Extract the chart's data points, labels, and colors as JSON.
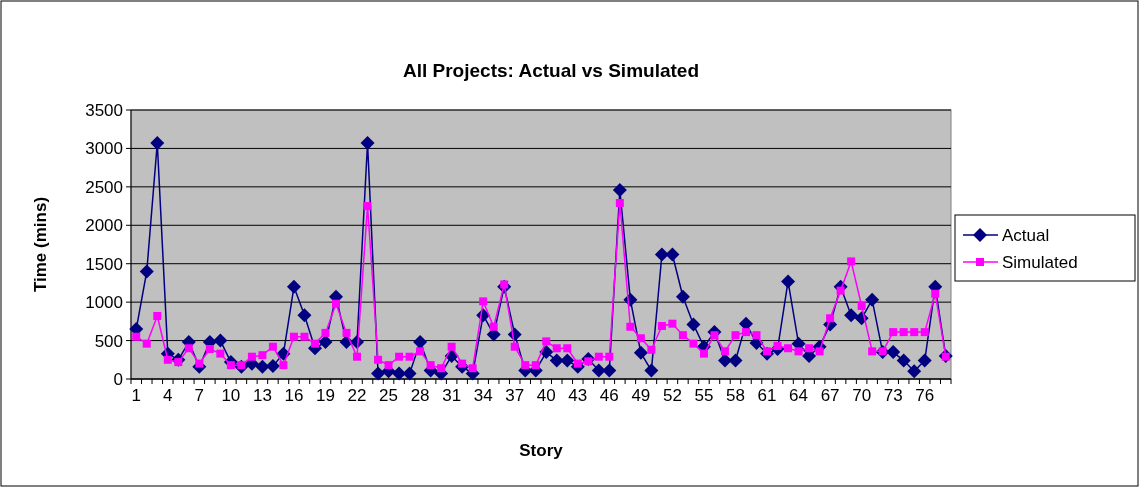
{
  "chart_data": {
    "type": "line",
    "title": "All Projects: Actual vs Simulated",
    "xlabel": "Story",
    "ylabel": "Time (mins)",
    "categories": [
      "1",
      null,
      null,
      "4",
      null,
      null,
      "7",
      null,
      null,
      "10",
      null,
      null,
      "13",
      null,
      null,
      "16",
      null,
      null,
      "19",
      null,
      null,
      "22",
      null,
      null,
      "25",
      null,
      null,
      "28",
      null,
      null,
      "31",
      null,
      null,
      "34",
      null,
      null,
      "37",
      null,
      null,
      "40",
      null,
      null,
      "43",
      null,
      null,
      "46",
      null,
      null,
      "49",
      null,
      null,
      "52",
      null,
      null,
      "55",
      null,
      null,
      "58",
      null,
      null,
      "61",
      null,
      null,
      "64",
      null,
      null,
      "67",
      null,
      null,
      "70",
      null,
      null,
      "73",
      null,
      null,
      "76",
      null,
      null
    ],
    "series": [
      {
        "name": "Actual",
        "color": "#000080",
        "marker": "diamond",
        "values": [
          650,
          1400,
          3070,
          330,
          250,
          480,
          160,
          480,
          500,
          220,
          160,
          200,
          160,
          170,
          330,
          1200,
          830,
          400,
          480,
          1070,
          480,
          480,
          3070,
          70,
          100,
          70,
          70,
          480,
          110,
          70,
          300,
          160,
          70,
          830,
          580,
          1200,
          580,
          110,
          110,
          350,
          240,
          240,
          160,
          260,
          110,
          110,
          2460,
          1030,
          340,
          110,
          1620,
          1620,
          1070,
          710,
          420,
          610,
          240,
          240,
          720,
          470,
          330,
          390,
          1270,
          460,
          300,
          420,
          710,
          1200,
          830,
          790,
          1030,
          350,
          350,
          240,
          100,
          240,
          1200,
          300
        ]
      },
      {
        "name": "Simulated",
        "color": "#ff00ff",
        "marker": "square",
        "values": [
          550,
          460,
          820,
          250,
          220,
          400,
          200,
          390,
          330,
          180,
          180,
          290,
          310,
          420,
          180,
          550,
          550,
          460,
          600,
          980,
          600,
          290,
          2250,
          250,
          180,
          290,
          290,
          360,
          180,
          140,
          420,
          200,
          140,
          1010,
          680,
          1230,
          420,
          180,
          180,
          490,
          400,
          400,
          200,
          230,
          290,
          290,
          2290,
          680,
          530,
          380,
          690,
          720,
          570,
          460,
          330,
          570,
          360,
          570,
          610,
          570,
          360,
          430,
          400,
          360,
          400,
          360,
          790,
          1150,
          1530,
          950,
          360,
          360,
          610,
          610,
          610,
          610,
          1110,
          290
        ]
      }
    ],
    "ylim": [
      0,
      3500
    ],
    "yticks": [
      0,
      500,
      1000,
      1500,
      2000,
      2500,
      3000,
      3500
    ],
    "grid": "y",
    "legend": "right"
  }
}
